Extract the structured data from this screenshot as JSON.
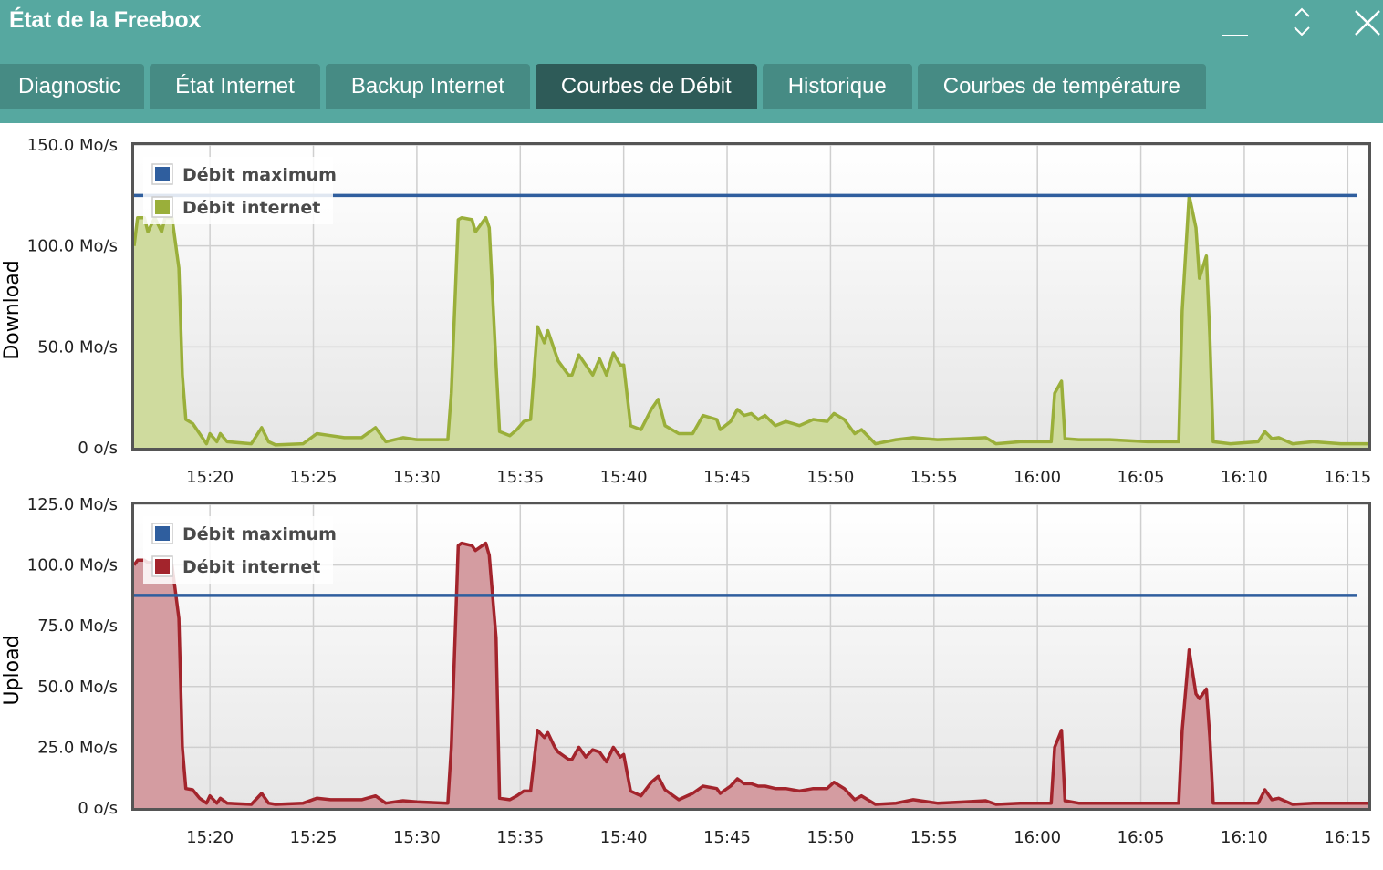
{
  "window": {
    "title": "État de la Freebox",
    "controls": {
      "minimize": "minimize-icon",
      "restore": "expand-collapse-icon",
      "close": "close-icon"
    }
  },
  "tabs": [
    {
      "label": "Diagnostic",
      "active": false
    },
    {
      "label": "État Internet",
      "active": false
    },
    {
      "label": "Backup Internet",
      "active": false
    },
    {
      "label": "Courbes de Débit",
      "active": true
    },
    {
      "label": "Historique",
      "active": false
    },
    {
      "label": "Courbes de température",
      "active": false
    }
  ],
  "colors": {
    "header": "#56a8a0",
    "tab": "#468b84",
    "tab_active": "#2e5b58",
    "max_line": "#2f5e9e",
    "download_line": "#9aaf3a",
    "download_fill": "#cfdb9e",
    "upload_line": "#a3242c",
    "upload_fill": "#d49ca1"
  },
  "chart_data": [
    {
      "type": "area",
      "ylabel": "Download",
      "xlim": [
        "15:16:20",
        "16:16:00"
      ],
      "ylim": [
        0,
        150
      ],
      "grid": true,
      "legend_placement": "top-left",
      "x_ticks": [
        "15:20",
        "15:25",
        "15:30",
        "15:35",
        "15:40",
        "15:45",
        "15:50",
        "15:55",
        "16:00",
        "16:05",
        "16:10",
        "16:15"
      ],
      "y_ticks": [
        0,
        50,
        100,
        150
      ],
      "y_tick_labels": [
        "0 o/s",
        "50.0 Mo/s",
        "100.0 Mo/s",
        "150.0 Mo/s"
      ],
      "series": [
        {
          "name": "Débit maximum",
          "type": "line",
          "constant": 125
        },
        {
          "name": "Débit internet",
          "type": "area",
          "x": [
            "15:16:20",
            "15:16:30",
            "15:16:50",
            "15:17:00",
            "15:17:20",
            "15:17:40",
            "15:17:50",
            "15:18:10",
            "15:18:30",
            "15:18:40",
            "15:18:50",
            "15:19:10",
            "15:19:30",
            "15:19:50",
            "15:20:00",
            "15:20:20",
            "15:20:30",
            "15:20:50",
            "15:22:00",
            "15:22:30",
            "15:22:50",
            "15:23:10",
            "15:24:30",
            "15:25:10",
            "15:25:50",
            "15:26:30",
            "15:27:20",
            "15:28:00",
            "15:28:30",
            "15:29:20",
            "15:30:00",
            "15:31:30",
            "15:31:40",
            "15:32:00",
            "15:32:10",
            "15:32:40",
            "15:32:50",
            "15:33:20",
            "15:33:30",
            "15:33:50",
            "15:34:00",
            "15:34:30",
            "15:34:50",
            "15:35:10",
            "15:35:30",
            "15:35:50",
            "15:36:10",
            "15:36:20",
            "15:36:40",
            "15:36:50",
            "15:37:20",
            "15:37:30",
            "15:37:50",
            "15:38:10",
            "15:38:30",
            "15:38:50",
            "15:39:10",
            "15:39:30",
            "15:39:50",
            "15:40:00",
            "15:40:20",
            "15:40:50",
            "15:41:20",
            "15:41:40",
            "15:42:00",
            "15:42:40",
            "15:43:20",
            "15:43:50",
            "15:44:30",
            "15:44:40",
            "15:45:10",
            "15:45:30",
            "15:45:50",
            "15:46:10",
            "15:46:30",
            "15:46:50",
            "15:47:20",
            "15:47:50",
            "15:48:30",
            "15:49:10",
            "15:49:50",
            "15:50:10",
            "15:50:40",
            "15:51:10",
            "15:51:30",
            "15:52:10",
            "15:53:10",
            "15:54:00",
            "15:55:10",
            "15:56:30",
            "15:57:30",
            "15:58:00",
            "15:59:10",
            "16:00:40",
            "16:00:50",
            "16:01:10",
            "16:01:20",
            "16:02:00",
            "16:03:30",
            "16:05:20",
            "16:06:50",
            "16:07:00",
            "16:07:20",
            "16:07:40",
            "16:07:50",
            "16:08:10",
            "16:08:20",
            "16:08:30",
            "16:09:20",
            "16:10:40",
            "16:11:00",
            "16:11:20",
            "16:11:40",
            "16:12:20",
            "16:13:20",
            "16:14:40",
            "16:16:00"
          ],
          "values": [
            100,
            114,
            114,
            107,
            114,
            107,
            114,
            114,
            89,
            36,
            14,
            12,
            7,
            2,
            7,
            3,
            7,
            3,
            2,
            10,
            3,
            1.4,
            2,
            7,
            6,
            5,
            5,
            10,
            3,
            5,
            4,
            4,
            27,
            113,
            114,
            113,
            107,
            114,
            109,
            41,
            8,
            6,
            9,
            13,
            14,
            60,
            52,
            58,
            48,
            43,
            36,
            36,
            46,
            41,
            36,
            44,
            36,
            47,
            41,
            41,
            11,
            9,
            19,
            24,
            11,
            7,
            7,
            16,
            14,
            9,
            13,
            19,
            16,
            17,
            14,
            16,
            11,
            13,
            11,
            14,
            13,
            17,
            14,
            7,
            9,
            2,
            4,
            5,
            4,
            4.5,
            5,
            2,
            3,
            3,
            27,
            33,
            4.5,
            4,
            4,
            3,
            3,
            68,
            125,
            109,
            84,
            95,
            55,
            3,
            2,
            3,
            8,
            4.5,
            5,
            2,
            3,
            2,
            2
          ]
        }
      ]
    },
    {
      "type": "area",
      "ylabel": "Upload",
      "xlim": [
        "15:16:20",
        "16:16:00"
      ],
      "ylim": [
        0,
        125
      ],
      "grid": true,
      "legend_placement": "top-left",
      "x_ticks": [
        "15:20",
        "15:25",
        "15:30",
        "15:35",
        "15:40",
        "15:45",
        "15:50",
        "15:55",
        "16:00",
        "16:05",
        "16:10",
        "16:15"
      ],
      "y_ticks": [
        0,
        25,
        50,
        75,
        100,
        125
      ],
      "y_tick_labels": [
        "0 o/s",
        "25.0 Mo/s",
        "50.0 Mo/s",
        "75.0 Mo/s",
        "100.0 Mo/s",
        "125.0 Mo/s"
      ],
      "series": [
        {
          "name": "Débit maximum",
          "type": "line",
          "constant": 87.5
        },
        {
          "name": "Débit internet",
          "type": "area",
          "x": [
            "15:16:20",
            "15:16:30",
            "15:16:50",
            "15:17:00",
            "15:17:20",
            "15:17:40",
            "15:17:50",
            "15:18:10",
            "15:18:30",
            "15:18:40",
            "15:18:50",
            "15:19:10",
            "15:19:30",
            "15:19:50",
            "15:20:00",
            "15:20:20",
            "15:20:30",
            "15:20:50",
            "15:22:00",
            "15:22:30",
            "15:22:50",
            "15:23:10",
            "15:24:30",
            "15:25:10",
            "15:25:50",
            "15:26:30",
            "15:27:20",
            "15:28:00",
            "15:28:30",
            "15:29:20",
            "15:30:00",
            "15:31:30",
            "15:31:40",
            "15:32:00",
            "15:32:10",
            "15:32:40",
            "15:32:50",
            "15:33:20",
            "15:33:30",
            "15:33:50",
            "15:34:00",
            "15:34:30",
            "15:34:50",
            "15:35:10",
            "15:35:30",
            "15:35:50",
            "15:36:10",
            "15:36:20",
            "15:36:40",
            "15:36:50",
            "15:37:20",
            "15:37:30",
            "15:37:50",
            "15:38:10",
            "15:38:30",
            "15:38:50",
            "15:39:10",
            "15:39:30",
            "15:39:50",
            "15:40:00",
            "15:40:20",
            "15:40:50",
            "15:41:20",
            "15:41:40",
            "15:42:00",
            "15:42:40",
            "15:43:20",
            "15:43:50",
            "15:44:30",
            "15:44:40",
            "15:45:10",
            "15:45:30",
            "15:45:50",
            "15:46:10",
            "15:46:30",
            "15:46:50",
            "15:47:20",
            "15:47:50",
            "15:48:30",
            "15:49:10",
            "15:49:50",
            "15:50:10",
            "15:50:40",
            "15:51:10",
            "15:51:30",
            "15:52:10",
            "15:53:10",
            "15:54:00",
            "15:55:10",
            "15:56:30",
            "15:57:30",
            "15:58:00",
            "15:59:10",
            "16:00:40",
            "16:00:50",
            "16:01:10",
            "16:01:20",
            "16:02:00",
            "16:03:30",
            "16:05:20",
            "16:06:50",
            "16:07:00",
            "16:07:20",
            "16:07:40",
            "16:07:50",
            "16:08:10",
            "16:08:20",
            "16:08:30",
            "16:09:20",
            "16:10:40",
            "16:11:00",
            "16:11:20",
            "16:11:40",
            "16:12:20",
            "16:13:20",
            "16:14:40",
            "16:16:00"
          ],
          "values": [
            100,
            102,
            102,
            101,
            101,
            100,
            101,
            100,
            78,
            25,
            8,
            7.5,
            4,
            2,
            5,
            2,
            4,
            2,
            1.5,
            6,
            2,
            1.5,
            2,
            4,
            3.4,
            3.4,
            3.4,
            5,
            2,
            3,
            2.5,
            2,
            25,
            108,
            109,
            108,
            106,
            109,
            104,
            70,
            4,
            3.4,
            5,
            7,
            7,
            32,
            29,
            31,
            25,
            23,
            20,
            20,
            25,
            21,
            24,
            23,
            19,
            25,
            21,
            22,
            7,
            5,
            10.6,
            13,
            7.5,
            3.4,
            6,
            9,
            8,
            6,
            9,
            12,
            10,
            10,
            9,
            9,
            8,
            8,
            7,
            8,
            8,
            10.6,
            8,
            3.4,
            5,
            1.5,
            2,
            3.4,
            2,
            2.5,
            3,
            1.5,
            2,
            2,
            25,
            32,
            3,
            2,
            2,
            2,
            2,
            32,
            65,
            47,
            45,
            49,
            29,
            2,
            2,
            2,
            7.5,
            3.4,
            4,
            1.5,
            2,
            2,
            2
          ]
        }
      ]
    }
  ]
}
